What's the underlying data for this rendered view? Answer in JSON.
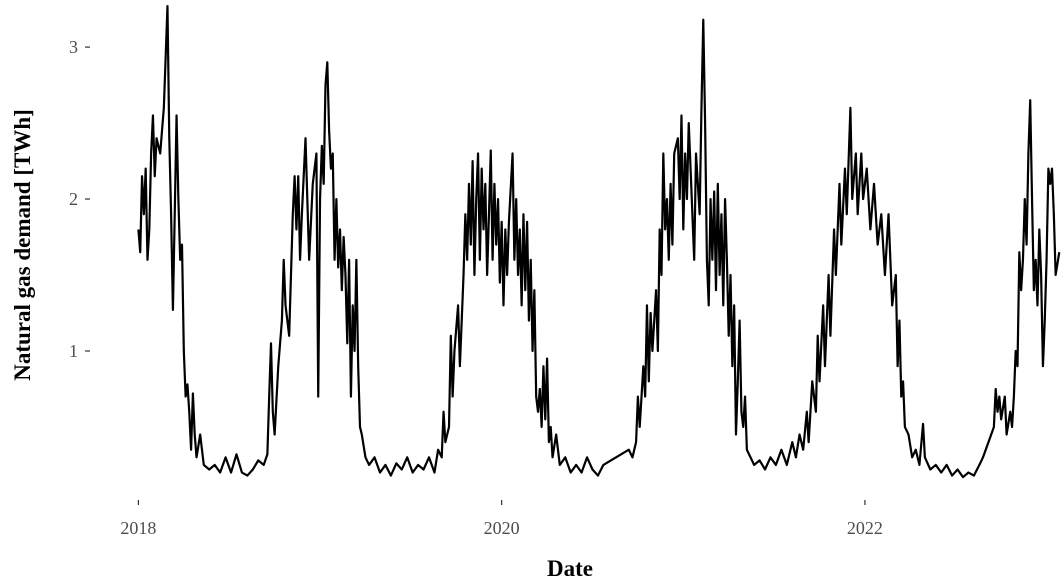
{
  "chart_data": {
    "type": "line",
    "x_label": "Date",
    "y_label": "Natural gas demand [TWh]",
    "color": "#000000",
    "xlim": [
      2017.75,
      2023.085
    ],
    "xticks": [
      2018,
      2020,
      2022
    ],
    "ylim": [
      0.085,
      3.31
    ],
    "yticks": [
      1,
      2,
      3
    ],
    "grid": false,
    "x": [
      2018.0,
      2018.01,
      2018.02,
      2018.03,
      2018.04,
      2018.05,
      2018.06,
      2018.07,
      2018.08,
      2018.09,
      2018.1,
      2018.12,
      2018.14,
      2018.16,
      2018.17,
      2018.18,
      2018.19,
      2018.2,
      2018.21,
      2018.22,
      2018.23,
      2018.24,
      2018.25,
      2018.26,
      2018.27,
      2018.28,
      2018.29,
      2018.3,
      2018.31,
      2018.32,
      2018.34,
      2018.36,
      2018.39,
      2018.42,
      2018.45,
      2018.48,
      2018.51,
      2018.54,
      2018.57,
      2018.6,
      2018.63,
      2018.66,
      2018.69,
      2018.71,
      2018.72,
      2018.73,
      2018.74,
      2018.75,
      2018.77,
      2018.79,
      2018.8,
      2018.81,
      2018.83,
      2018.85,
      2018.86,
      2018.87,
      2018.88,
      2018.89,
      2018.9,
      2018.92,
      2018.93,
      2018.94,
      2018.96,
      2018.98,
      2018.99,
      2019.0,
      2019.01,
      2019.02,
      2019.03,
      2019.04,
      2019.05,
      2019.06,
      2019.07,
      2019.08,
      2019.09,
      2019.1,
      2019.11,
      2019.12,
      2019.13,
      2019.14,
      2019.15,
      2019.16,
      2019.17,
      2019.18,
      2019.19,
      2019.2,
      2019.21,
      2019.22,
      2019.23,
      2019.25,
      2019.27,
      2019.3,
      2019.33,
      2019.36,
      2019.39,
      2019.42,
      2019.45,
      2019.48,
      2019.51,
      2019.54,
      2019.57,
      2019.6,
      2019.63,
      2019.65,
      2019.67,
      2019.68,
      2019.69,
      2019.71,
      2019.72,
      2019.73,
      2019.74,
      2019.76,
      2019.77,
      2019.79,
      2019.8,
      2019.81,
      2019.82,
      2019.83,
      2019.84,
      2019.85,
      2019.86,
      2019.87,
      2019.88,
      2019.89,
      2019.9,
      2019.91,
      2019.92,
      2019.93,
      2019.94,
      2019.95,
      2019.96,
      2019.97,
      2019.98,
      2019.99,
      2020.0,
      2020.01,
      2020.02,
      2020.03,
      2020.04,
      2020.06,
      2020.07,
      2020.08,
      2020.09,
      2020.1,
      2020.11,
      2020.12,
      2020.13,
      2020.14,
      2020.15,
      2020.16,
      2020.17,
      2020.18,
      2020.19,
      2020.2,
      2020.21,
      2020.22,
      2020.23,
      2020.24,
      2020.25,
      2020.26,
      2020.27,
      2020.28,
      2020.3,
      2020.32,
      2020.35,
      2020.38,
      2020.41,
      2020.44,
      2020.47,
      2020.5,
      2020.53,
      2020.56,
      2020.7,
      2020.72,
      2020.74,
      2020.75,
      2020.76,
      2020.78,
      2020.79,
      2020.8,
      2020.81,
      2020.82,
      2020.83,
      2020.85,
      2020.86,
      2020.87,
      2020.88,
      2020.89,
      2020.9,
      2020.91,
      2020.92,
      2020.93,
      2020.94,
      2020.95,
      2020.97,
      2020.98,
      2020.99,
      2021.0,
      2021.01,
      2021.02,
      2021.03,
      2021.04,
      2021.06,
      2021.07,
      2021.09,
      2021.1,
      2021.11,
      2021.12,
      2021.13,
      2021.14,
      2021.15,
      2021.16,
      2021.17,
      2021.18,
      2021.19,
      2021.2,
      2021.21,
      2021.22,
      2021.23,
      2021.24,
      2021.25,
      2021.26,
      2021.27,
      2021.28,
      2021.29,
      2021.3,
      2021.31,
      2021.32,
      2021.33,
      2021.34,
      2021.35,
      2021.37,
      2021.39,
      2021.42,
      2021.45,
      2021.48,
      2021.51,
      2021.54,
      2021.57,
      2021.6,
      2021.62,
      2021.64,
      2021.66,
      2021.68,
      2021.69,
      2021.71,
      2021.73,
      2021.74,
      2021.75,
      2021.77,
      2021.78,
      2021.8,
      2021.81,
      2021.83,
      2021.84,
      2021.86,
      2021.87,
      2021.89,
      2021.9,
      2021.92,
      2021.93,
      2021.95,
      2021.96,
      2021.98,
      2021.99,
      2022.01,
      2022.03,
      2022.05,
      2022.07,
      2022.09,
      2022.11,
      2022.13,
      2022.15,
      2022.17,
      2022.18,
      2022.19,
      2022.2,
      2022.21,
      2022.22,
      2022.24,
      2022.26,
      2022.28,
      2022.3,
      2022.32,
      2022.33,
      2022.36,
      2022.39,
      2022.42,
      2022.45,
      2022.48,
      2022.51,
      2022.54,
      2022.57,
      2022.6,
      2022.63,
      2022.65,
      2022.71,
      2022.72,
      2022.73,
      2022.74,
      2022.75,
      2022.77,
      2022.78,
      2022.8,
      2022.81,
      2022.82,
      2022.83,
      2022.84,
      2022.85,
      2022.86,
      2022.87,
      2022.88,
      2022.89,
      2022.9,
      2022.91,
      2022.92,
      2022.93,
      2022.94,
      2022.95,
      2022.96,
      2022.97,
      2022.98,
      2022.99,
      2023.0,
      2023.01,
      2023.02,
      2023.03,
      2023.04,
      2023.05,
      2023.07
    ],
    "values": [
      1.8,
      1.65,
      2.15,
      1.9,
      2.2,
      1.6,
      1.8,
      2.3,
      2.55,
      2.15,
      2.4,
      2.3,
      2.6,
      3.27,
      2.4,
      1.9,
      1.27,
      1.9,
      2.55,
      2.0,
      1.6,
      1.7,
      1.0,
      0.7,
      0.78,
      0.6,
      0.35,
      0.72,
      0.45,
      0.3,
      0.45,
      0.25,
      0.22,
      0.25,
      0.2,
      0.3,
      0.2,
      0.32,
      0.2,
      0.18,
      0.22,
      0.28,
      0.25,
      0.32,
      0.7,
      1.05,
      0.6,
      0.45,
      0.9,
      1.2,
      1.6,
      1.3,
      1.1,
      1.9,
      2.15,
      1.8,
      2.15,
      1.6,
      1.9,
      2.4,
      2.0,
      1.6,
      2.1,
      2.3,
      0.7,
      2.0,
      2.35,
      2.1,
      2.75,
      2.9,
      2.45,
      2.2,
      2.3,
      1.6,
      2.0,
      1.55,
      1.8,
      1.4,
      1.75,
      1.5,
      1.05,
      1.6,
      0.7,
      1.3,
      1.0,
      1.6,
      0.9,
      0.5,
      0.45,
      0.3,
      0.25,
      0.3,
      0.2,
      0.25,
      0.18,
      0.26,
      0.22,
      0.3,
      0.2,
      0.25,
      0.22,
      0.3,
      0.2,
      0.35,
      0.3,
      0.6,
      0.4,
      0.5,
      1.1,
      0.7,
      1.0,
      1.3,
      0.9,
      1.5,
      1.9,
      1.6,
      2.1,
      1.7,
      2.25,
      1.5,
      2.0,
      2.3,
      1.6,
      2.2,
      1.8,
      2.1,
      1.5,
      1.9,
      2.32,
      1.6,
      2.1,
      1.7,
      2.0,
      1.45,
      1.85,
      1.3,
      1.8,
      1.5,
      1.85,
      2.3,
      1.6,
      2.0,
      1.5,
      1.8,
      1.3,
      1.9,
      1.4,
      1.85,
      1.2,
      1.6,
      1.0,
      1.4,
      0.7,
      0.6,
      0.75,
      0.5,
      0.9,
      0.55,
      0.95,
      0.4,
      0.5,
      0.3,
      0.45,
      0.25,
      0.3,
      0.2,
      0.25,
      0.2,
      0.3,
      0.22,
      0.18,
      0.25,
      0.35,
      0.3,
      0.4,
      0.7,
      0.5,
      0.9,
      0.7,
      1.3,
      0.8,
      1.25,
      1.0,
      1.4,
      1.0,
      1.8,
      1.5,
      2.3,
      1.8,
      2.0,
      1.6,
      2.1,
      1.7,
      2.3,
      2.4,
      2.0,
      2.55,
      1.8,
      2.3,
      2.0,
      2.5,
      2.2,
      1.6,
      2.3,
      1.9,
      2.6,
      3.18,
      2.5,
      1.6,
      1.3,
      2.0,
      1.6,
      2.05,
      1.4,
      2.1,
      1.5,
      1.9,
      1.3,
      2.0,
      1.6,
      1.1,
      1.5,
      0.9,
      1.3,
      0.45,
      0.8,
      1.2,
      0.6,
      0.5,
      0.7,
      0.35,
      0.3,
      0.25,
      0.28,
      0.22,
      0.3,
      0.25,
      0.35,
      0.25,
      0.4,
      0.3,
      0.45,
      0.35,
      0.6,
      0.4,
      0.8,
      0.6,
      1.1,
      0.8,
      1.3,
      0.9,
      1.5,
      1.1,
      1.8,
      1.5,
      2.1,
      1.7,
      2.2,
      1.9,
      2.6,
      2.0,
      2.3,
      1.9,
      2.3,
      2.0,
      2.2,
      1.8,
      2.1,
      1.7,
      1.9,
      1.5,
      1.9,
      1.3,
      1.5,
      0.9,
      1.2,
      0.7,
      0.8,
      0.5,
      0.45,
      0.3,
      0.35,
      0.25,
      0.52,
      0.3,
      0.22,
      0.25,
      0.2,
      0.25,
      0.18,
      0.22,
      0.17,
      0.2,
      0.18,
      0.25,
      0.3,
      0.5,
      0.75,
      0.6,
      0.7,
      0.55,
      0.7,
      0.45,
      0.6,
      0.5,
      0.7,
      1.0,
      0.9,
      1.65,
      1.4,
      1.6,
      2.0,
      1.7,
      2.3,
      2.65,
      2.0,
      1.4,
      1.6,
      1.3,
      1.8,
      1.5,
      0.9,
      1.2,
      1.6,
      2.2,
      2.1,
      2.2,
      1.9,
      1.5,
      1.65
    ]
  }
}
